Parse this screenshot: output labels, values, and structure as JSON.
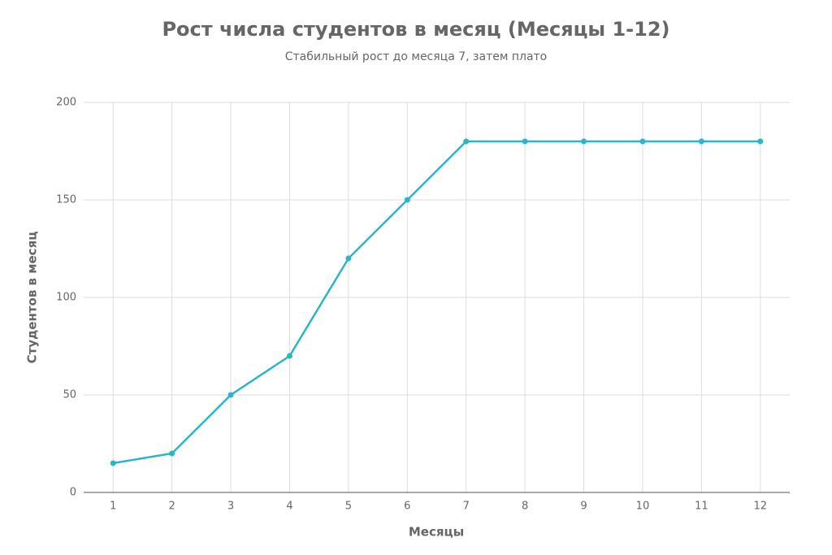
{
  "chart_data": {
    "type": "line",
    "title": "Рост числа студентов в месяц (Месяцы 1-12)",
    "subtitle": "Стабильный рост до месяца 7, затем плато",
    "x_label": "Месяцы",
    "y_label": "Студентов в месяц",
    "x": [
      1,
      2,
      3,
      4,
      5,
      6,
      7,
      8,
      9,
      10,
      11,
      12
    ],
    "series": [
      {
        "name": "Студентов в месяц",
        "color": "#2bb5c8",
        "values": [
          15,
          20,
          50,
          70,
          120,
          150,
          180,
          180,
          180,
          180,
          180,
          180
        ]
      }
    ],
    "xlim": [
      0.5,
      12.5
    ],
    "xticks": [
      1,
      2,
      3,
      4,
      5,
      6,
      7,
      8,
      9,
      10,
      11,
      12
    ],
    "ylim": [
      0,
      200
    ],
    "yticks": [
      0,
      50,
      100,
      150,
      200
    ],
    "grid": true
  }
}
